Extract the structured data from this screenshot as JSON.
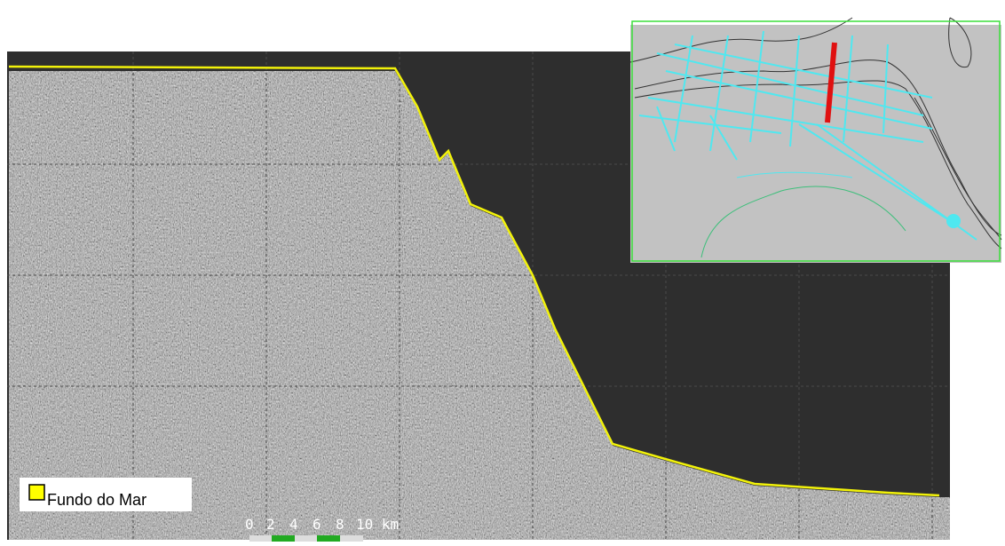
{
  "legend": {
    "label": "Fundo do Mar"
  },
  "scale_bar": {
    "labels": [
      "0",
      "2",
      "4",
      "6",
      "8",
      "10 km"
    ]
  }
}
